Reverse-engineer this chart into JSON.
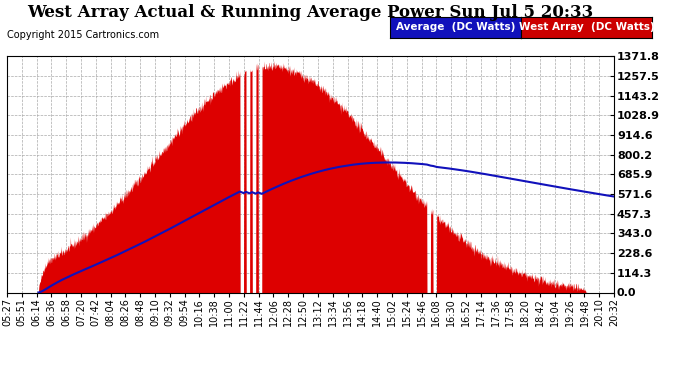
{
  "title": "West Array Actual & Running Average Power Sun Jul 5 20:33",
  "copyright": "Copyright 2015 Cartronics.com",
  "ymax": 1371.8,
  "ymin": 0.0,
  "yticks": [
    0.0,
    114.3,
    228.6,
    343.0,
    457.3,
    571.6,
    685.9,
    800.2,
    914.6,
    1028.9,
    1143.2,
    1257.5,
    1371.8
  ],
  "legend_avg_label": "Average  (DC Watts)",
  "legend_west_label": "West Array  (DC Watts)",
  "legend_avg_color": "#1111bb",
  "legend_west_color": "#cc0000",
  "fill_color": "#dd0000",
  "line_color": "#1111bb",
  "grid_color": "#aaaaaa",
  "title_fontsize": 12,
  "copyright_fontsize": 7,
  "ytick_fontsize": 8,
  "xtick_fontsize": 7,
  "x_tick_labels": [
    "05:27",
    "05:51",
    "06:14",
    "06:36",
    "06:58",
    "07:20",
    "07:42",
    "08:04",
    "08:26",
    "08:48",
    "09:10",
    "09:32",
    "09:54",
    "10:16",
    "10:38",
    "11:00",
    "11:22",
    "11:44",
    "12:06",
    "12:28",
    "12:50",
    "13:12",
    "13:34",
    "13:56",
    "14:18",
    "14:40",
    "15:02",
    "15:24",
    "15:46",
    "16:08",
    "16:30",
    "16:52",
    "17:14",
    "17:36",
    "17:58",
    "18:20",
    "18:42",
    "19:04",
    "19:26",
    "19:48",
    "20:10",
    "20:32"
  ]
}
